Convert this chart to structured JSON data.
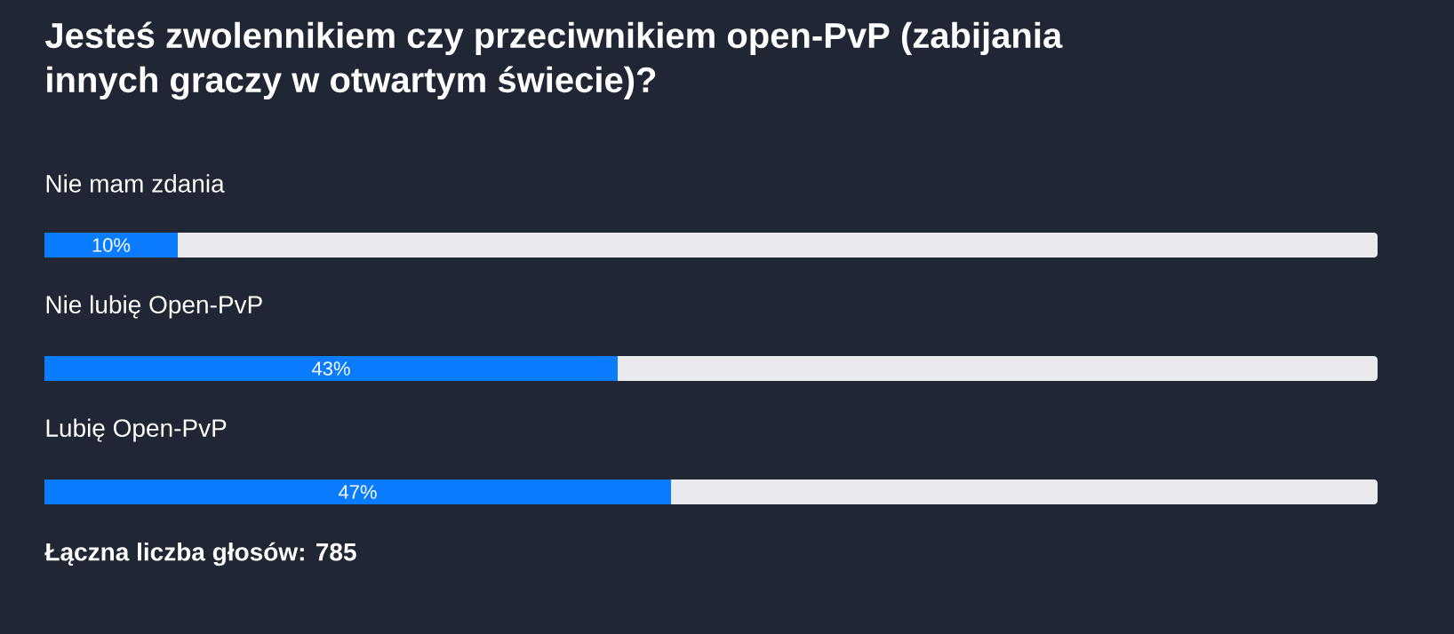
{
  "chart_data": {
    "type": "bar",
    "orientation": "horizontal",
    "title": "Jesteś zwolennikiem czy przeciwnikiem open-PvP (zabijania innych graczy w otwartym świecie)?",
    "categories": [
      "Nie mam zdania",
      "Nie lubię Open-PvP",
      "Lubię Open-PvP"
    ],
    "values": [
      10,
      43,
      47
    ],
    "value_labels": [
      "10%",
      "43%",
      "47%"
    ],
    "color": "#0a7cff",
    "xlim": [
      0,
      100
    ],
    "tick_labels": false,
    "annotations": [
      "Łączna liczba głosów: 785"
    ]
  }
}
